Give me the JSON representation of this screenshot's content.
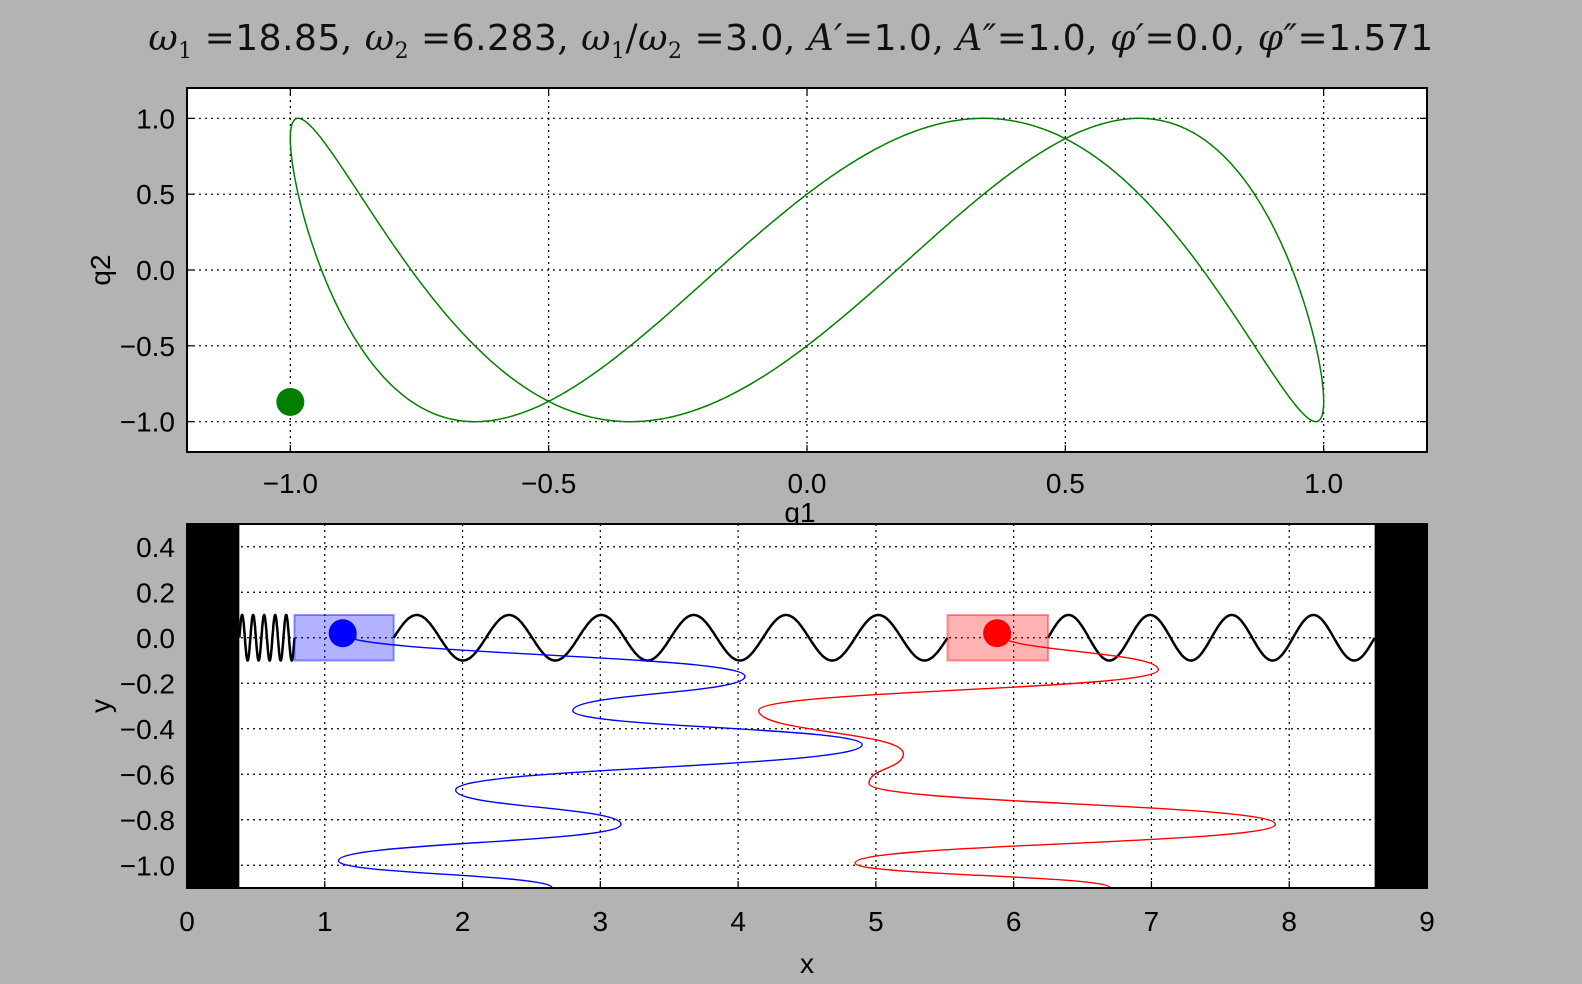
{
  "title": {
    "w1_value": "18.85",
    "w2_value": "6.283",
    "ratio_value": "3.0",
    "A1_value": "1.0",
    "A2_value": "1.0",
    "phi1_value": "0.0",
    "phi2_value": "1.571"
  },
  "colors": {
    "lissajous": "#007f00",
    "mass1": "#0000ff",
    "mass2": "#ff0000",
    "spring": "#000000",
    "wall": "#000000"
  },
  "chart_data": [
    {
      "type": "line",
      "title": "ω1 =18.85, ω2 =6.283, ω1 /ω2 =3.0, A′=1.0, A″=1.0, φ′=0.0, φ″=1.571",
      "xlabel": "q1",
      "ylabel": "q2",
      "xlim": [
        -1.2,
        1.2
      ],
      "ylim": [
        -1.2,
        1.2
      ],
      "xticks": [
        "−1.0",
        "−0.5",
        "0.0",
        "0.5",
        "1.0"
      ],
      "yticks": [
        "−1.0",
        "−0.5",
        "0.0",
        "0.5",
        "1.0"
      ],
      "grid": true,
      "series": [
        {
          "kind": "lissajous",
          "A1": 1.0,
          "A2": 1.0,
          "ratio": 3.0,
          "phi1": 0.0,
          "phi2": 1.571
        }
      ],
      "marker": {
        "x": -1.0,
        "y": -0.87
      }
    },
    {
      "type": "line",
      "xlabel": "x",
      "ylabel": "y",
      "xlim": [
        0,
        9
      ],
      "ylim": [
        -1.1,
        0.5
      ],
      "xticks": [
        "0",
        "1",
        "2",
        "3",
        "4",
        "5",
        "6",
        "7",
        "8",
        "9"
      ],
      "yticks": [
        "0.4",
        "0.2",
        "0.0",
        "−0.2",
        "−0.4",
        "−0.6",
        "−0.8",
        "−1.0"
      ],
      "grid": true,
      "walls": [
        [
          0,
          0.38
        ],
        [
          8.62,
          9
        ]
      ],
      "masses": [
        {
          "center": 1.13,
          "box": [
            0.78,
            1.5
          ],
          "color": "blue"
        },
        {
          "center": 5.88,
          "box": [
            5.52,
            6.25
          ],
          "color": "red"
        }
      ],
      "springs": [
        {
          "from": 0.38,
          "to": 0.78,
          "coils": 5
        },
        {
          "from": 1.5,
          "to": 5.52,
          "coils": 6
        },
        {
          "from": 6.25,
          "to": 8.62,
          "coils": 4
        }
      ],
      "traces": [
        {
          "color": "blue",
          "points": [
            [
              1.13,
              0.02
            ],
            [
              4.05,
              -0.17
            ],
            [
              2.8,
              -0.32
            ],
            [
              4.9,
              -0.47
            ],
            [
              1.95,
              -0.67
            ],
            [
              3.15,
              -0.82
            ],
            [
              1.1,
              -0.98
            ],
            [
              2.65,
              -1.1
            ]
          ]
        },
        {
          "color": "red",
          "points": [
            [
              5.88,
              0.02
            ],
            [
              7.05,
              -0.14
            ],
            [
              4.15,
              -0.32
            ],
            [
              5.2,
              -0.51
            ],
            [
              4.95,
              -0.64
            ],
            [
              7.9,
              -0.82
            ],
            [
              4.85,
              -0.99
            ],
            [
              6.7,
              -1.1
            ]
          ]
        }
      ]
    }
  ]
}
